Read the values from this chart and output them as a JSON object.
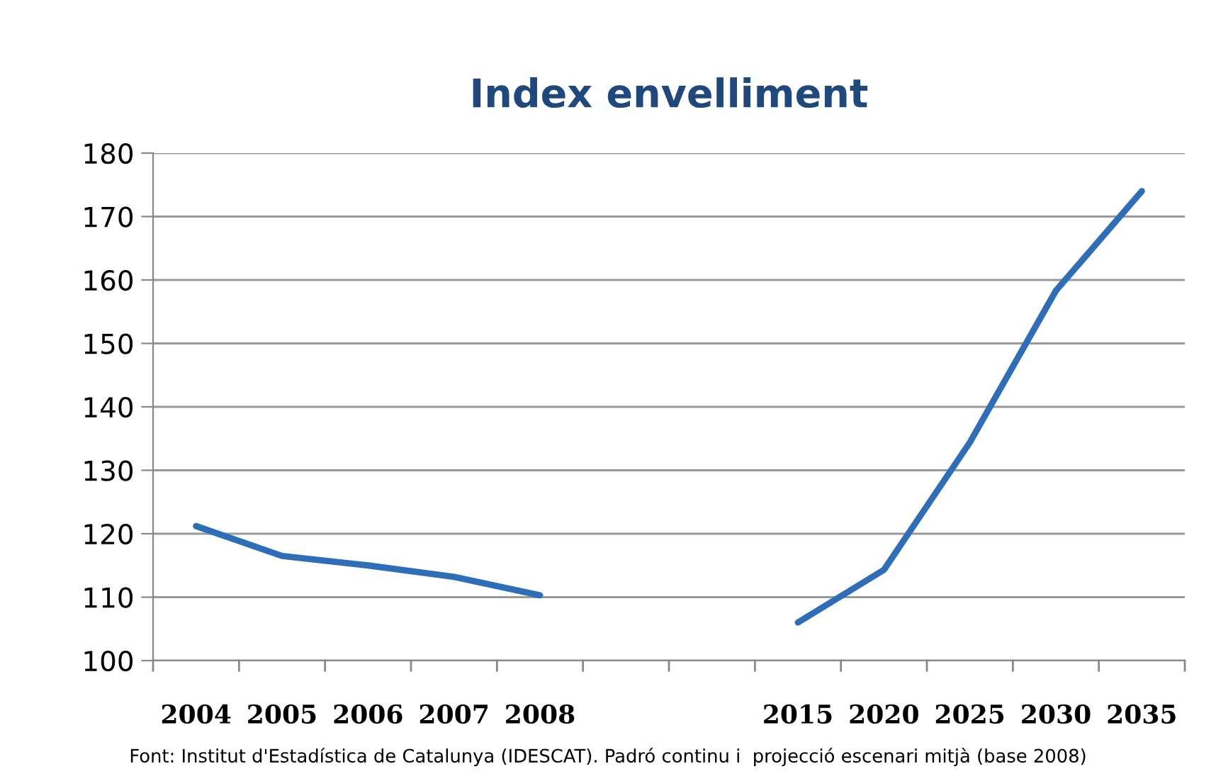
{
  "chart_data": {
    "type": "line",
    "title": "Index envelliment",
    "categories": [
      "2004",
      "2005",
      "2006",
      "2007",
      "2008",
      null,
      null,
      "2015",
      "2020",
      "2025",
      "2030",
      "2035"
    ],
    "series": [
      {
        "color": "#2e6eb8",
        "values": [
          121.2,
          116.5,
          115.0,
          113.2,
          110.3,
          null,
          null,
          106.0,
          114.3,
          134.4,
          158.3,
          174.0
        ]
      }
    ],
    "ylim": [
      100,
      180
    ],
    "yticks": [
      100,
      110,
      120,
      130,
      140,
      150,
      160,
      170,
      180
    ],
    "grid": "y",
    "legend": false,
    "marker": "none",
    "line_style": "solid",
    "annotations": [
      "Font: Institut d'Estadística de Catalunya (IDESCAT). Padró continu i  projecció escenari mitjà (base 2008)"
    ]
  }
}
